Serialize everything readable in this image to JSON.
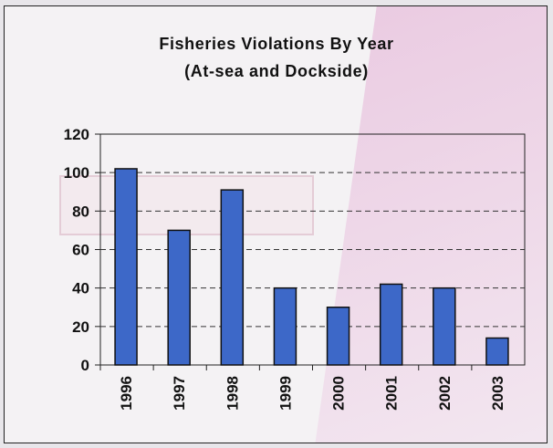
{
  "chart_data": {
    "type": "bar",
    "title": "Fisheries Violations By Year",
    "subtitle": "(At-sea and Dockside)",
    "categories": [
      "1996",
      "1997",
      "1998",
      "1999",
      "2000",
      "2001",
      "2002",
      "2003"
    ],
    "values": [
      102,
      70,
      91,
      40,
      30,
      42,
      40,
      14
    ],
    "xlabel": "",
    "ylabel": "",
    "ylim": [
      0,
      120
    ],
    "yticks": [
      "0",
      "20",
      "40",
      "60",
      "80",
      "100",
      "120"
    ],
    "grid": true,
    "legend": "none",
    "bar_color": "#3d68c8"
  }
}
